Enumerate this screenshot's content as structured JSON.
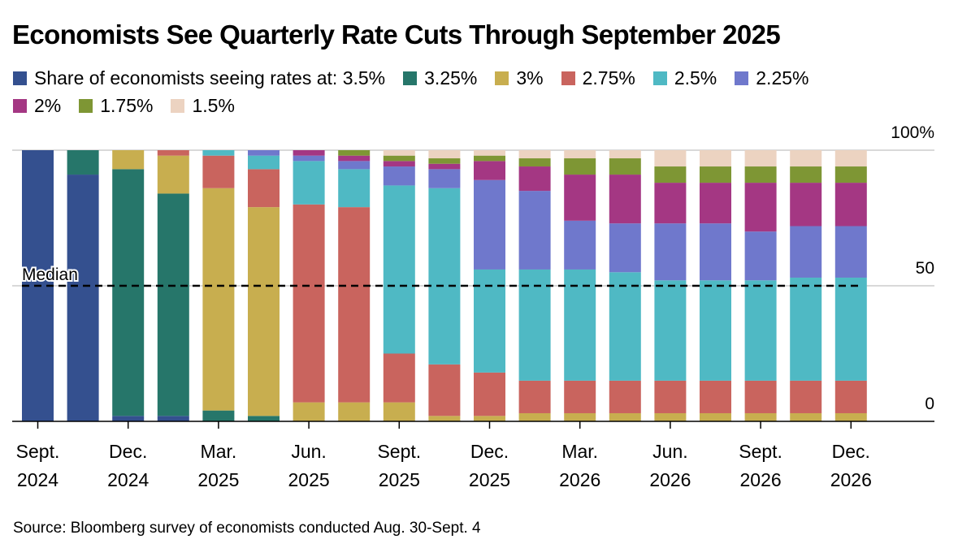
{
  "chart_data": {
    "type": "bar",
    "stacked": true,
    "title": "Economists See Quarterly Rate Cuts Through September 2025",
    "legend_prefix": "Share of economists seeing rates at:",
    "legend_placement": "top",
    "categories": [
      "Sept. 2024",
      "",
      "Dec. 2024",
      "",
      "Mar. 2025",
      "",
      "Jun. 2025",
      "",
      "Sept. 2025",
      "",
      "Dec. 2025",
      "",
      "Mar. 2026",
      "",
      "Jun. 2026",
      "",
      "Sept. 2026",
      "",
      "Dec. 2026"
    ],
    "tick_labels": [
      {
        "line1": "Sept.",
        "line2": "2024"
      },
      {
        "line1": "Dec.",
        "line2": "2024"
      },
      {
        "line1": "Mar.",
        "line2": "2025"
      },
      {
        "line1": "Jun.",
        "line2": "2025"
      },
      {
        "line1": "Sept.",
        "line2": "2025"
      },
      {
        "line1": "Dec.",
        "line2": "2025"
      },
      {
        "line1": "Mar.",
        "line2": "2026"
      },
      {
        "line1": "Jun.",
        "line2": "2026"
      },
      {
        "line1": "Sept.",
        "line2": "2026"
      },
      {
        "line1": "Dec.",
        "line2": "2026"
      }
    ],
    "ylim": [
      0,
      100
    ],
    "y_ticks": [
      {
        "value": 100,
        "label": "100%"
      },
      {
        "value": 50,
        "label": "50"
      },
      {
        "value": 0,
        "label": "0"
      }
    ],
    "y_axis_side": "right",
    "grid": true,
    "median_line": {
      "value": 50,
      "label": "Median"
    },
    "series": [
      {
        "name": "3.5%",
        "color": "#34508f",
        "values": [
          100,
          91,
          2,
          2,
          0,
          0,
          0,
          0,
          0,
          0,
          0,
          0,
          0,
          0,
          0,
          0,
          0,
          0,
          0
        ]
      },
      {
        "name": "3.25%",
        "color": "#26766a",
        "values": [
          0,
          9,
          91,
          82,
          4,
          2,
          0,
          0,
          0,
          0,
          0,
          0,
          0,
          0,
          0,
          0,
          0,
          0,
          0
        ]
      },
      {
        "name": "3%",
        "color": "#c8ae4f",
        "values": [
          0,
          0,
          7,
          14,
          82,
          77,
          7,
          7,
          7,
          2,
          2,
          3,
          3,
          3,
          3,
          3,
          3,
          3,
          3
        ]
      },
      {
        "name": "2.75%",
        "color": "#c9645e",
        "values": [
          0,
          0,
          0,
          2,
          12,
          14,
          73,
          72,
          18,
          19,
          16,
          12,
          12,
          12,
          12,
          12,
          12,
          12,
          12
        ]
      },
      {
        "name": "2.5%",
        "color": "#4fb9c4",
        "values": [
          0,
          0,
          0,
          0,
          2,
          5,
          16,
          14,
          62,
          65,
          38,
          41,
          41,
          40,
          37,
          37,
          37,
          38,
          38
        ]
      },
      {
        "name": "2.25%",
        "color": "#6f78cc",
        "values": [
          0,
          0,
          0,
          0,
          0,
          2,
          2,
          3,
          7,
          7,
          33,
          29,
          18,
          18,
          21,
          21,
          18,
          19,
          19
        ]
      },
      {
        "name": "2%",
        "color": "#a43783",
        "values": [
          0,
          0,
          0,
          0,
          0,
          0,
          2,
          2,
          2,
          2,
          7,
          9,
          17,
          18,
          15,
          15,
          18,
          16,
          16
        ]
      },
      {
        "name": "1.75%",
        "color": "#7e9634",
        "values": [
          0,
          0,
          0,
          0,
          0,
          0,
          0,
          2,
          2,
          2,
          2,
          3,
          6,
          6,
          6,
          6,
          6,
          6,
          6
        ]
      },
      {
        "name": "1.5%",
        "color": "#ecd3c1",
        "values": [
          0,
          0,
          0,
          0,
          0,
          0,
          0,
          0,
          2,
          3,
          2,
          3,
          3,
          3,
          6,
          6,
          6,
          6,
          6
        ]
      }
    ],
    "source": "Source: Bloomberg survey of economists conducted Aug. 30-Sept. 4"
  }
}
